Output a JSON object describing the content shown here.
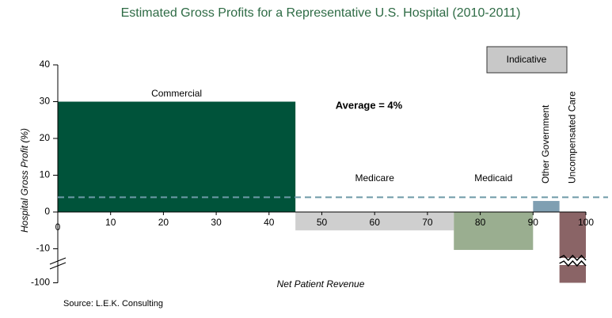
{
  "chart_data": {
    "type": "variable-width-bar",
    "title": "Estimated Gross Profits for a Representative U.S. Hospital (2010-2011)",
    "x_label": "Net Patient Revenue",
    "y_label": "Hospital Gross Profit (%)",
    "categories": [
      "Commercial",
      "Medicare",
      "Medicaid",
      "Other Government",
      "Uncompensated Care"
    ],
    "xstart": [
      0,
      45,
      75,
      90,
      95
    ],
    "xend": [
      45,
      75,
      90,
      95,
      100
    ],
    "values": [
      30,
      -5,
      -13,
      3,
      -100
    ],
    "colors": [
      "#00533a",
      "#cfcfcf",
      "#9aae90",
      "#7f9fb2",
      "#8a6466"
    ],
    "xlim": [
      0,
      100
    ],
    "xticks": [
      0,
      10,
      20,
      30,
      40,
      50,
      60,
      70,
      80,
      90,
      100
    ],
    "ylim": [
      -100,
      40
    ],
    "yticks": [
      40,
      30,
      20,
      10,
      0,
      -10,
      -100
    ],
    "axis_break": true,
    "average": 4,
    "average_label": "Average = 4%",
    "badge": "Indicative",
    "source": "Source:  L.E.K. Consulting"
  }
}
